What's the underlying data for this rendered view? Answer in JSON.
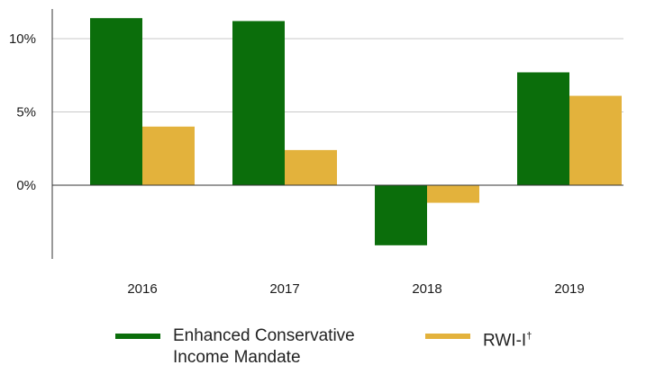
{
  "chart_data": {
    "type": "bar",
    "categories": [
      "2016",
      "2017",
      "2018",
      "2019"
    ],
    "series": [
      {
        "name": "Enhanced Conservative Income Mandate",
        "color": "#0b6e0b",
        "values": [
          11.4,
          11.2,
          -4.1,
          7.7
        ]
      },
      {
        "name": "RWI-I†",
        "color": "#e3b23c",
        "values": [
          4.0,
          2.4,
          -1.2,
          6.1
        ]
      }
    ],
    "yticks": [
      "10%",
      "5%",
      "0%"
    ],
    "ytick_values": [
      10,
      5,
      0
    ],
    "ylim": [
      -5,
      12
    ],
    "grid": true,
    "legend": "bottom",
    "title": "",
    "xlabel": "",
    "ylabel": ""
  },
  "legend": {
    "series1_label": "Enhanced Conservative Income Mandate",
    "series2_label": "RWI-I",
    "series2_mark": "†"
  }
}
